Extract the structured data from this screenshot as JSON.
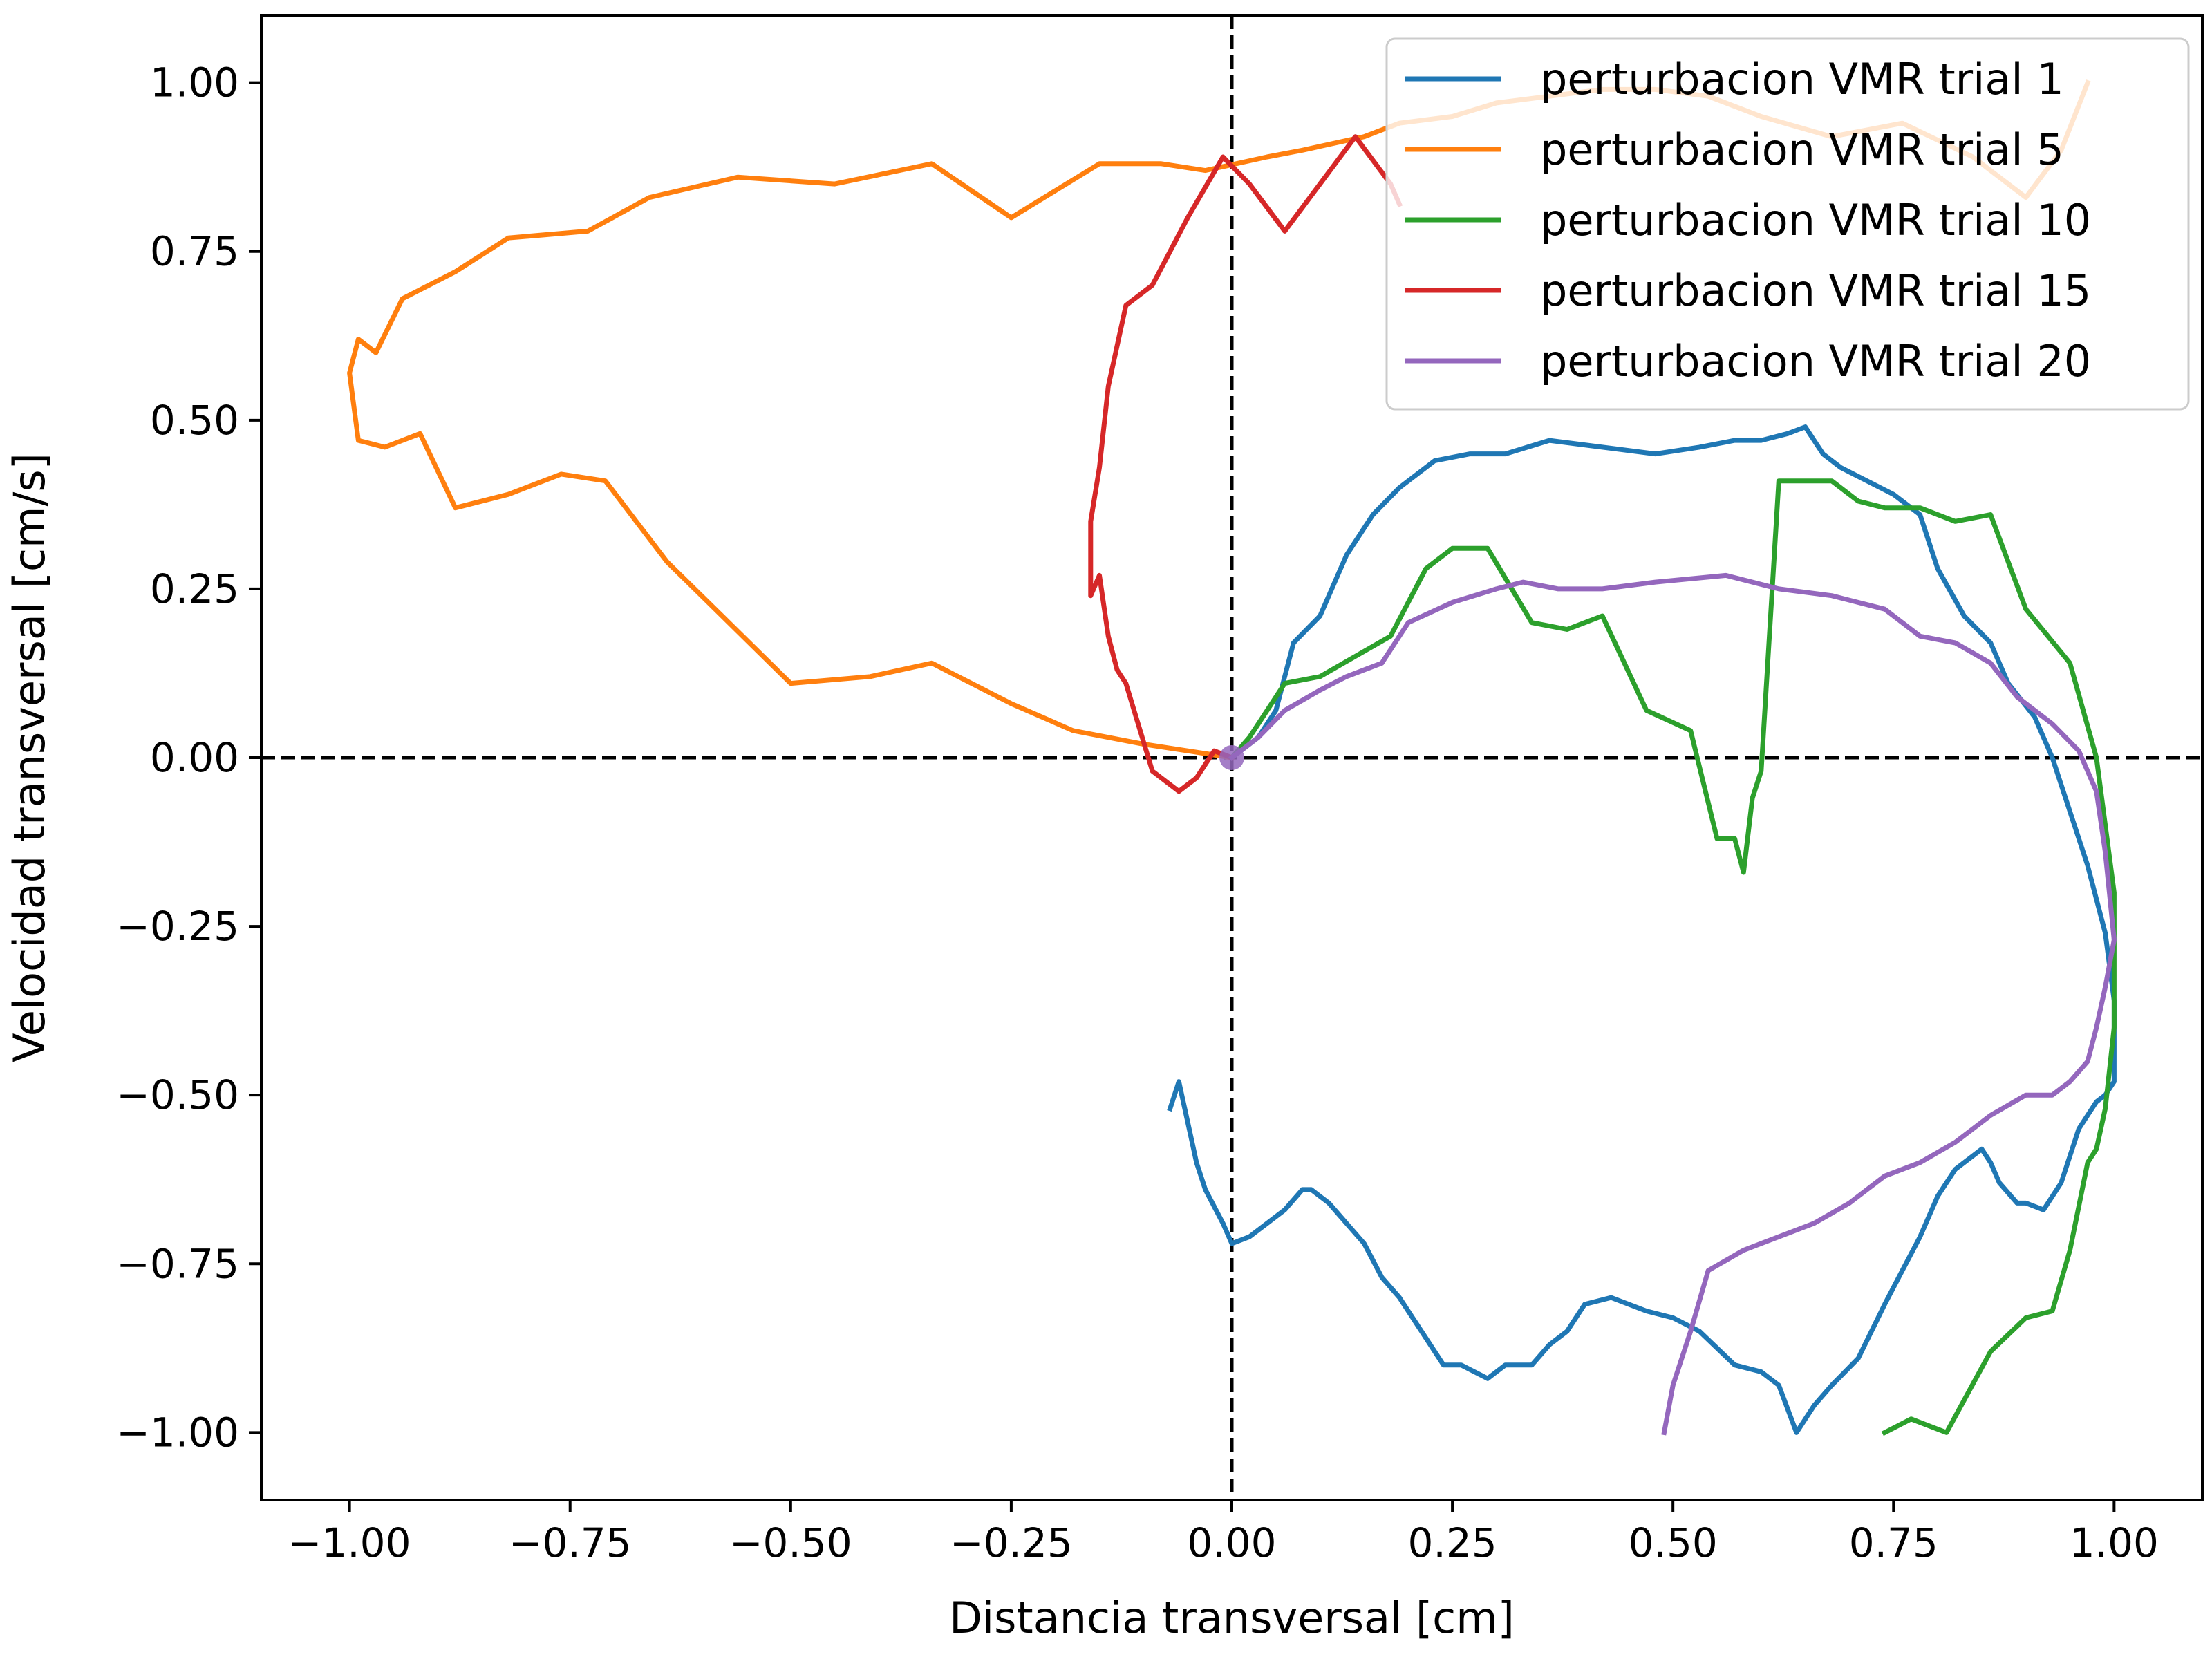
{
  "chart_data": {
    "type": "line",
    "xlabel": "Distancia transversal [cm]",
    "ylabel": "Velocidad transversal [cm/s]",
    "xlim": [
      -1.1,
      1.1
    ],
    "ylim": [
      -1.1,
      1.1
    ],
    "xticks": [
      -1.0,
      -0.75,
      -0.5,
      -0.25,
      0.0,
      0.25,
      0.5,
      0.75,
      1.0
    ],
    "xtick_labels": [
      "−1.00",
      "−0.75",
      "−0.50",
      "−0.25",
      "0.00",
      "0.25",
      "0.50",
      "0.75",
      "1.00"
    ],
    "yticks": [
      1.0,
      0.75,
      0.5,
      0.25,
      0.0,
      -0.25,
      -0.5,
      -0.75,
      -1.0
    ],
    "ytick_labels": [
      "1.00",
      "0.75",
      "0.50",
      "0.25",
      "0.00",
      "−0.25",
      "−0.50",
      "−0.75",
      "−1.00"
    ],
    "grid": false,
    "reference_lines": {
      "x": 0,
      "y": 0,
      "style": "dashed",
      "color": "#000000"
    },
    "legend_position": "top-right",
    "origin_marker": {
      "x": 0,
      "y": 0,
      "color": "#9467bd"
    },
    "series": [
      {
        "name": "perturbacion VMR trial 1",
        "color": "#1f77b4",
        "x": [
          0.0,
          0.03,
          0.05,
          0.07,
          0.1,
          0.13,
          0.16,
          0.19,
          0.23,
          0.27,
          0.31,
          0.36,
          0.42,
          0.48,
          0.53,
          0.57,
          0.6,
          0.63,
          0.65,
          0.67,
          0.69,
          0.72,
          0.75,
          0.78,
          0.8,
          0.83,
          0.86,
          0.88,
          0.91,
          0.93,
          0.95,
          0.97,
          0.99,
          1.0,
          1.0,
          0.99,
          0.98,
          0.96,
          0.94,
          0.92,
          0.9,
          0.89,
          0.87,
          0.86,
          0.85,
          0.84,
          0.83,
          0.82,
          0.8,
          0.78,
          0.76,
          0.74,
          0.71,
          0.68,
          0.66,
          0.64,
          0.62,
          0.6,
          0.57,
          0.53,
          0.5,
          0.47,
          0.43,
          0.4,
          0.38,
          0.36,
          0.34,
          0.31,
          0.29,
          0.26,
          0.24,
          0.22,
          0.19,
          0.17,
          0.15,
          0.13,
          0.11,
          0.09,
          0.08,
          0.06,
          0.04,
          0.02,
          0.0,
          -0.01,
          -0.03,
          -0.04,
          -0.05,
          -0.06,
          -0.07
        ],
        "y": [
          0.0,
          0.03,
          0.07,
          0.17,
          0.21,
          0.3,
          0.36,
          0.4,
          0.44,
          0.45,
          0.45,
          0.47,
          0.46,
          0.45,
          0.46,
          0.47,
          0.47,
          0.48,
          0.49,
          0.45,
          0.43,
          0.41,
          0.39,
          0.36,
          0.28,
          0.21,
          0.17,
          0.11,
          0.06,
          0.0,
          -0.08,
          -0.16,
          -0.26,
          -0.36,
          -0.48,
          -0.5,
          -0.51,
          -0.55,
          -0.63,
          -0.67,
          -0.66,
          -0.66,
          -0.63,
          -0.6,
          -0.58,
          -0.59,
          -0.6,
          -0.61,
          -0.65,
          -0.71,
          -0.76,
          -0.81,
          -0.89,
          -0.93,
          -0.96,
          -1.0,
          -0.93,
          -0.91,
          -0.9,
          -0.85,
          -0.83,
          -0.82,
          -0.8,
          -0.81,
          -0.85,
          -0.87,
          -0.9,
          -0.9,
          -0.92,
          -0.9,
          -0.9,
          -0.86,
          -0.8,
          -0.77,
          -0.72,
          -0.69,
          -0.66,
          -0.64,
          -0.64,
          -0.67,
          -0.69,
          -0.71,
          -0.72,
          -0.69,
          -0.64,
          -0.6,
          -0.54,
          -0.48,
          -0.52
        ]
      },
      {
        "name": "perturbacion VMR trial 5",
        "color": "#ff7f0e",
        "x": [
          0.0,
          -0.05,
          -0.1,
          -0.18,
          -0.25,
          -0.34,
          -0.41,
          -0.5,
          -0.57,
          -0.64,
          -0.71,
          -0.76,
          -0.82,
          -0.88,
          -0.92,
          -0.96,
          -0.99,
          -1.0,
          -0.99,
          -0.97,
          -0.94,
          -0.88,
          -0.82,
          -0.73,
          -0.66,
          -0.56,
          -0.45,
          -0.34,
          -0.25,
          -0.15,
          -0.08,
          -0.03,
          0.04,
          0.08,
          0.15,
          0.19,
          0.25,
          0.3,
          0.36,
          0.42,
          0.48,
          0.54,
          0.6,
          0.68,
          0.76,
          0.84,
          0.9,
          0.94,
          0.97
        ],
        "y": [
          0.0,
          0.01,
          0.02,
          0.04,
          0.08,
          0.14,
          0.12,
          0.11,
          0.2,
          0.29,
          0.41,
          0.42,
          0.39,
          0.37,
          0.48,
          0.46,
          0.47,
          0.57,
          0.62,
          0.6,
          0.68,
          0.72,
          0.77,
          0.78,
          0.83,
          0.86,
          0.85,
          0.88,
          0.8,
          0.88,
          0.88,
          0.87,
          0.89,
          0.9,
          0.92,
          0.94,
          0.95,
          0.97,
          0.98,
          0.99,
          0.99,
          0.98,
          0.95,
          0.92,
          0.94,
          0.89,
          0.83,
          0.9,
          1.0
        ]
      },
      {
        "name": "perturbacion VMR trial 10",
        "color": "#2ca02c",
        "x": [
          0.0,
          0.02,
          0.04,
          0.06,
          0.1,
          0.14,
          0.18,
          0.22,
          0.25,
          0.29,
          0.34,
          0.38,
          0.42,
          0.47,
          0.52,
          0.55,
          0.57,
          0.58,
          0.59,
          0.6,
          0.62,
          0.65,
          0.68,
          0.71,
          0.74,
          0.78,
          0.82,
          0.86,
          0.9,
          0.95,
          0.98,
          1.0,
          1.0,
          0.99,
          0.98,
          0.97,
          0.95,
          0.93,
          0.9,
          0.86,
          0.81,
          0.77,
          0.74
        ],
        "y": [
          0.0,
          0.03,
          0.07,
          0.11,
          0.12,
          0.15,
          0.18,
          0.28,
          0.31,
          0.31,
          0.2,
          0.19,
          0.21,
          0.07,
          0.04,
          -0.12,
          -0.12,
          -0.17,
          -0.06,
          -0.02,
          0.41,
          0.41,
          0.41,
          0.38,
          0.37,
          0.37,
          0.35,
          0.36,
          0.22,
          0.14,
          0.0,
          -0.2,
          -0.4,
          -0.52,
          -0.58,
          -0.6,
          -0.73,
          -0.82,
          -0.83,
          -0.88,
          -1.0,
          -0.98,
          -1.0
        ]
      },
      {
        "name": "perturbacion VMR trial 15",
        "color": "#d62728",
        "x": [
          0.0,
          -0.02,
          -0.04,
          -0.06,
          -0.09,
          -0.12,
          -0.13,
          -0.14,
          -0.15,
          -0.16,
          -0.16,
          -0.16,
          -0.15,
          -0.14,
          -0.12,
          -0.09,
          -0.05,
          -0.01,
          0.02,
          0.06,
          0.1,
          0.14,
          0.18,
          0.19
        ],
        "y": [
          0.0,
          0.01,
          -0.03,
          -0.05,
          -0.02,
          0.11,
          0.13,
          0.18,
          0.27,
          0.24,
          0.3,
          0.35,
          0.43,
          0.55,
          0.67,
          0.7,
          0.8,
          0.89,
          0.85,
          0.78,
          0.85,
          0.92,
          0.85,
          0.82
        ]
      },
      {
        "name": "perturbacion VMR trial 20",
        "color": "#9467bd",
        "x": [
          0.0,
          0.03,
          0.06,
          0.1,
          0.13,
          0.17,
          0.2,
          0.25,
          0.3,
          0.33,
          0.37,
          0.42,
          0.48,
          0.56,
          0.62,
          0.68,
          0.74,
          0.78,
          0.82,
          0.86,
          0.89,
          0.93,
          0.96,
          0.98,
          0.99,
          1.0,
          0.99,
          0.98,
          0.97,
          0.95,
          0.93,
          0.9,
          0.86,
          0.82,
          0.78,
          0.74,
          0.7,
          0.66,
          0.62,
          0.58,
          0.54,
          0.52,
          0.5,
          0.49
        ],
        "y": [
          0.0,
          0.03,
          0.07,
          0.1,
          0.12,
          0.14,
          0.2,
          0.23,
          0.25,
          0.26,
          0.25,
          0.25,
          0.26,
          0.27,
          0.25,
          0.24,
          0.22,
          0.18,
          0.17,
          0.14,
          0.09,
          0.05,
          0.01,
          -0.05,
          -0.14,
          -0.27,
          -0.34,
          -0.4,
          -0.45,
          -0.48,
          -0.5,
          -0.5,
          -0.53,
          -0.57,
          -0.6,
          -0.62,
          -0.66,
          -0.69,
          -0.71,
          -0.73,
          -0.76,
          -0.85,
          -0.93,
          -1.0
        ]
      }
    ]
  }
}
